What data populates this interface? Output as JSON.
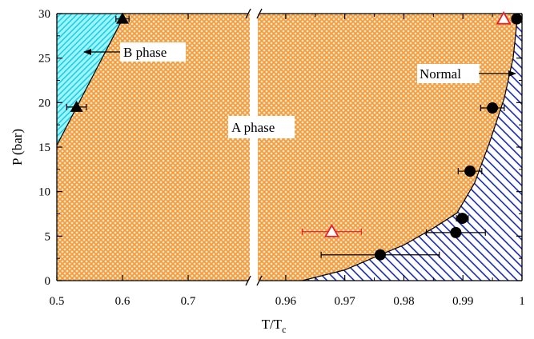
{
  "chart_data": {
    "type": "scatter",
    "xlabel": "T/T",
    "xlabel_subscript": "c",
    "ylabel": "P (bar)",
    "ylim": [
      0,
      30
    ],
    "y_ticks": [
      "0",
      "5",
      "10",
      "15",
      "20",
      "25",
      "30"
    ],
    "x_axis_broken": true,
    "x_segments": [
      {
        "xlim": [
          0.5,
          0.8
        ],
        "ticks": [
          0.5,
          0.6,
          0.7
        ],
        "tick_labels": [
          "0.5",
          "0.6",
          "0.7"
        ]
      },
      {
        "xlim": [
          0.955,
          1.0
        ],
        "ticks": [
          0.96,
          0.97,
          0.98,
          0.99,
          1.0
        ],
        "tick_labels": [
          "0.96",
          "0.97",
          "0.98",
          "0.99",
          "1"
        ]
      }
    ],
    "regions": [
      {
        "name": "B phase",
        "label": "B phase",
        "color": "#22d3e8",
        "pattern": "diagonal hatch",
        "boundary": [
          [
            0.5,
            15.2
          ],
          [
            0.6,
            29.4
          ],
          [
            0.6,
            30
          ]
        ]
      },
      {
        "name": "A phase",
        "label": "A phase",
        "color": "#f5a04a",
        "pattern": "crosshatch"
      },
      {
        "name": "Normal",
        "label": "Normal",
        "color": "#1a2bb0",
        "pattern": "diagonal hatch",
        "boundary": [
          [
            0.9628,
            0
          ],
          [
            0.97,
            1.2
          ],
          [
            0.976,
            2.9
          ],
          [
            0.98,
            4.0
          ],
          [
            0.985,
            5.9
          ],
          [
            0.989,
            7.6
          ],
          [
            0.992,
            11.0
          ],
          [
            0.9945,
            15.5
          ],
          [
            0.997,
            20.5
          ],
          [
            0.9985,
            25.0
          ],
          [
            0.9993,
            30.0
          ]
        ]
      }
    ],
    "series": [
      {
        "marker": "filled-triangle",
        "color": "#000000",
        "points": [
          {
            "x": 0.6,
            "y": 29.4,
            "xerr": 0.01
          },
          {
            "x": 0.53,
            "y": 19.5,
            "xerr": 0.015
          }
        ]
      },
      {
        "marker": "filled-circle",
        "color": "#000000",
        "points": [
          {
            "x": 0.9991,
            "y": 29.4,
            "xerr": 0.0005
          },
          {
            "x": 0.995,
            "y": 19.4,
            "xerr": 0.002
          },
          {
            "x": 0.9912,
            "y": 12.3,
            "xerr": 0.002
          },
          {
            "x": 0.9899,
            "y": 7.0,
            "xerr": 0.001
          },
          {
            "x": 0.9888,
            "y": 5.4,
            "xerr": 0.005
          },
          {
            "x": 0.976,
            "y": 2.9,
            "xerr": 0.01
          }
        ]
      },
      {
        "marker": "open-triangle",
        "color": "#e8202a",
        "points": [
          {
            "x": 0.9678,
            "y": 5.5,
            "xerr": 0.005
          },
          {
            "x": 0.9969,
            "y": 29.4,
            "xerr": 0.0
          }
        ]
      }
    ],
    "annotations": [
      {
        "text": "B phase",
        "arrow_to": [
          0.54,
          25.8
        ]
      },
      {
        "text": "A phase"
      },
      {
        "text": "Normal",
        "arrow_to": [
          0.9991,
          23.1
        ]
      }
    ],
    "grid": false
  }
}
